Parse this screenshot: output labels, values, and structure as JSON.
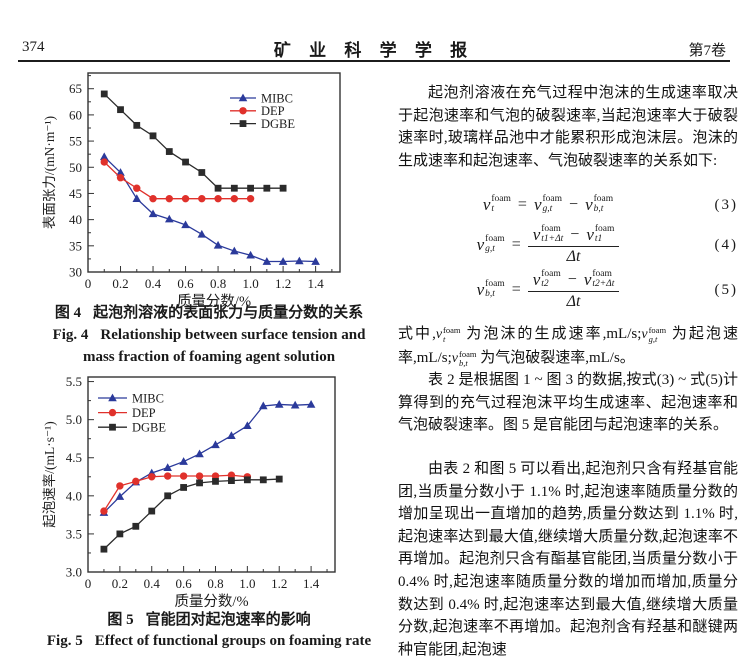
{
  "header": {
    "page_number": "374",
    "journal_title": "矿 业 科 学 学 报",
    "volume": "第7卷"
  },
  "figure4": {
    "caption_label": "图 4",
    "caption_text": "起泡剂溶液的表面张力与质量分数的关系",
    "caption_en_label": "Fig. 4",
    "caption_en_line1": "Relationship between surface tension and",
    "caption_en_line2": "mass fraction of foaming agent solution"
  },
  "figure5": {
    "caption_label": "图 5",
    "caption_text": "官能团对起泡速率的影响",
    "caption_en_label": "Fig. 5",
    "caption_en_text": "Effect of functional groups on foaming rate"
  },
  "article": {
    "p1": "起泡剂溶液在充气过程中泡沫的生成速率取决于起泡速率和气泡的破裂速率,当起泡速率大于破裂速率时,玻璃样品池中才能累积形成泡沫层。泡沫的生成速率和起泡速率、气泡破裂速率的关系如下:",
    "p2_segments": [
      {
        "text": "式中,"
      },
      {
        "math": {
          "base": "v",
          "sup": "foam",
          "sub": "t"
        }
      },
      {
        "text": " 为泡沫的生成速率,mL/s;"
      },
      {
        "math": {
          "base": "v",
          "sup": "foam",
          "sub": "g,t"
        }
      },
      {
        "text": " 为起泡速率,mL/s;"
      },
      {
        "math": {
          "base": "v",
          "sup": "foam",
          "sub": "b,t"
        }
      },
      {
        "text": " 为气泡破裂速率,mL/s。"
      }
    ],
    "p3": "表 2 是根据图 1 ~ 图 3 的数据,按式(3) ~ 式(5)计算得到的充气过程泡沫平均生成速率、起泡速率和气泡破裂速率。图 5 是官能团与起泡速率的关系。",
    "p4": "由表 2 和图 5 可以看出,起泡剂只含有羟基官能团,当质量分数小于 1.1% 时,起泡速率随质量分数的增加呈现出一直增加的趋势,质量分数达到 1.1% 时,起泡速率达到最大值,继续增大质量分数,起泡速率不再增加。起泡剂只含有酯基官能团,当质量分数小于 0.4% 时,起泡速率随质量分数的增加而增加,质量分数达到 0.4% 时,起泡速率达到最大值,继续增大质量分数,起泡速率不再增加。起泡剂含有羟基和醚键两种官能团,起泡速"
  },
  "equations": [
    {
      "number": "(3)",
      "lhs": {
        "base": "v",
        "sup": "foam",
        "sub": "t"
      },
      "rhs": [
        {
          "term": {
            "base": "v",
            "sup": "foam",
            "sub": "g,t"
          }
        },
        {
          "op": "−"
        },
        {
          "term": {
            "base": "v",
            "sup": "foam",
            "sub": "b,t"
          }
        }
      ]
    },
    {
      "number": "(4)",
      "lhs": {
        "base": "v",
        "sup": "foam",
        "sub": "g,t"
      },
      "frac": {
        "num": [
          {
            "term": {
              "base": "v",
              "sup": "foam",
              "sub": "t1+Δt"
            }
          },
          {
            "op": "−"
          },
          {
            "term": {
              "base": "v",
              "sup": "foam",
              "sub": "t1"
            }
          }
        ],
        "den": "Δt"
      }
    },
    {
      "number": "(5)",
      "lhs": {
        "base": "v",
        "sup": "foam",
        "sub": "b,t"
      },
      "frac": {
        "num": [
          {
            "term": {
              "base": "v",
              "sup": "foam",
              "sub": "t2"
            }
          },
          {
            "op": "−"
          },
          {
            "term": {
              "base": "v",
              "sup": "foam",
              "sub": "t2+Δt"
            }
          }
        ],
        "den": "Δt"
      }
    }
  ],
  "chart_data": [
    {
      "id": "figure4",
      "type": "line",
      "title": "",
      "xlabel": "质量分数/%",
      "ylabel": "表面张力/(mN·m⁻¹)",
      "xlim": [
        0,
        1.55
      ],
      "ylim": [
        30,
        68
      ],
      "xticks": [
        0,
        0.2,
        0.4,
        0.6,
        0.8,
        1.0,
        1.2,
        1.4
      ],
      "xtick_labels": [
        "0",
        "0.2",
        "0.4",
        "0.6",
        "0.8",
        "1.0",
        "1.2",
        "1.4"
      ],
      "yticks": [
        30,
        35,
        40,
        45,
        50,
        55,
        60,
        65
      ],
      "ytick_labels": [
        "30",
        "35",
        "40",
        "45",
        "50",
        "55",
        "60",
        "65"
      ],
      "x_minor_step": 0.1,
      "y_minor_step": 2.5,
      "grid": false,
      "legend_position": "top-right",
      "series": [
        {
          "name": "MIBC",
          "color": "#2b3a9b",
          "marker": "triangle",
          "x": [
            0.1,
            0.2,
            0.3,
            0.4,
            0.5,
            0.6,
            0.7,
            0.8,
            0.9,
            1.0,
            1.1,
            1.2,
            1.3,
            1.4
          ],
          "y": [
            52,
            49,
            44,
            41.1,
            40.1,
            39,
            37.2,
            35.1,
            34,
            33.2,
            32,
            32,
            32.1,
            32
          ]
        },
        {
          "name": "DEP",
          "color": "#e0312b",
          "marker": "circle",
          "x": [
            0.1,
            0.2,
            0.3,
            0.4,
            0.5,
            0.6,
            0.7,
            0.8,
            0.9,
            1.0
          ],
          "y": [
            51,
            48,
            46,
            44,
            44,
            44,
            44,
            44,
            44,
            44
          ]
        },
        {
          "name": "DGBE",
          "color": "#2b2b2b",
          "marker": "square",
          "x": [
            0.1,
            0.2,
            0.3,
            0.4,
            0.5,
            0.6,
            0.7,
            0.8,
            0.9,
            1.0,
            1.1,
            1.2
          ],
          "y": [
            64,
            61,
            58,
            56,
            53,
            51,
            49,
            46,
            46,
            46,
            46,
            46
          ]
        }
      ]
    },
    {
      "id": "figure5",
      "type": "line",
      "title": "",
      "xlabel": "质量分数/%",
      "ylabel": "起泡速率/(mL·s⁻¹)",
      "xlim": [
        0,
        1.55
      ],
      "ylim": [
        3.0,
        5.56
      ],
      "xticks": [
        0,
        0.2,
        0.4,
        0.6,
        0.8,
        1.0,
        1.2,
        1.4
      ],
      "xtick_labels": [
        "0",
        "0.2",
        "0.4",
        "0.6",
        "0.8",
        "1.0",
        "1.2",
        "1.4"
      ],
      "yticks": [
        3.0,
        3.5,
        4.0,
        4.5,
        5.0,
        5.5
      ],
      "ytick_labels": [
        "3.0",
        "3.5",
        "4.0",
        "4.5",
        "5.0",
        "5.5"
      ],
      "x_minor_step": 0.1,
      "y_minor_step": 0.25,
      "grid": false,
      "legend_position": "top-left",
      "series": [
        {
          "name": "MIBC",
          "color": "#2b3a9b",
          "marker": "triangle",
          "x": [
            0.1,
            0.2,
            0.3,
            0.4,
            0.5,
            0.6,
            0.7,
            0.8,
            0.9,
            1.0,
            1.1,
            1.2,
            1.3,
            1.4
          ],
          "y": [
            3.78,
            3.99,
            4.18,
            4.3,
            4.37,
            4.45,
            4.55,
            4.67,
            4.79,
            4.92,
            5.18,
            5.2,
            5.19,
            5.2
          ]
        },
        {
          "name": "DEP",
          "color": "#e0312b",
          "marker": "circle",
          "x": [
            0.1,
            0.2,
            0.3,
            0.4,
            0.5,
            0.6,
            0.7,
            0.8,
            0.9,
            1.0
          ],
          "y": [
            3.8,
            4.13,
            4.19,
            4.25,
            4.26,
            4.26,
            4.26,
            4.26,
            4.27,
            4.25
          ]
        },
        {
          "name": "DGBE",
          "color": "#2b2b2b",
          "marker": "square",
          "x": [
            0.1,
            0.2,
            0.3,
            0.4,
            0.5,
            0.6,
            0.7,
            0.8,
            0.9,
            1.0,
            1.1,
            1.2
          ],
          "y": [
            3.3,
            3.5,
            3.6,
            3.8,
            4.0,
            4.11,
            4.17,
            4.19,
            4.2,
            4.21,
            4.21,
            4.22
          ]
        }
      ]
    }
  ]
}
